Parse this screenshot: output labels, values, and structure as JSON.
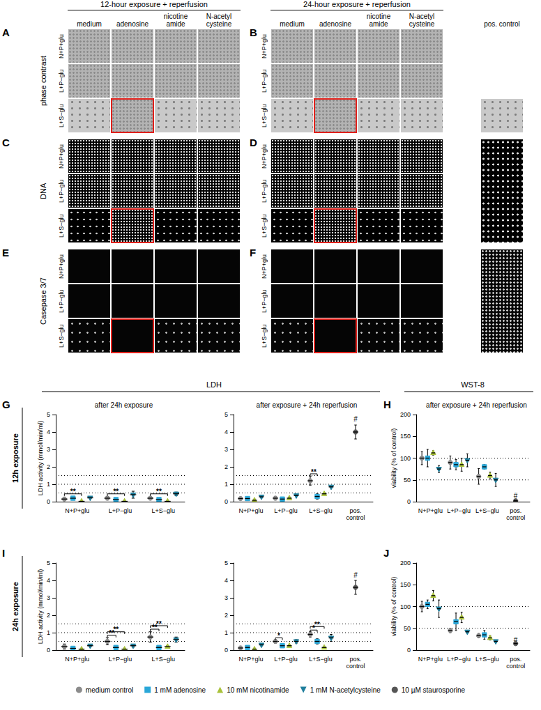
{
  "figure": {
    "panels": {
      "headers": [
        "12-hour exposure + reperfusion",
        "24-hour exposure + reperfusion"
      ],
      "columns": [
        "medium",
        "adenosine",
        "nicotine amide",
        "N-acetyl cysteine"
      ],
      "pos_control": "pos. control",
      "rows": [
        "N+P+glu",
        "L+P−glu",
        "L+S−glu"
      ],
      "stains": [
        "phase contrast",
        "DNA",
        "Casepase 3/7"
      ],
      "letters": [
        [
          "A",
          "B"
        ],
        [
          "C",
          "D"
        ],
        [
          "E",
          "F"
        ]
      ]
    },
    "sections": {
      "headers": [
        "LDH",
        "WST-8"
      ],
      "rows": [
        {
          "letter": "G",
          "label": "12h exposure",
          "side_letter": "H"
        },
        {
          "letter": "I",
          "label": "24h exposure",
          "side_letter": "J"
        }
      ]
    }
  },
  "chart_data": [
    {
      "type": "scatter",
      "title": "after 24h exposure",
      "y_label": "LDH activity (mmol/min/ml)",
      "categories": [
        "N+P+glu",
        "L+P−glu",
        "L+S−glu"
      ],
      "ylim": [
        0,
        5
      ],
      "yticks": [
        0,
        1,
        2,
        3,
        4,
        5
      ],
      "grid": false,
      "reference_lines": [
        0.5,
        1,
        1.5
      ],
      "series": [
        {
          "name": "medium control",
          "color": "#8c8c8c",
          "marker": "circle",
          "values": [
            0.15,
            0.2,
            0.2
          ],
          "errors": [
            0.05,
            0.1,
            0.07
          ]
        },
        {
          "name": "1 mM adenosine",
          "color": "#2aa7d8",
          "marker": "square",
          "values": [
            0.2,
            0.12,
            0.12
          ],
          "errors": [
            0.03,
            0.03,
            0.03
          ]
        },
        {
          "name": "10 mM nicotinamide",
          "color": "#a9c23a",
          "marker": "triangle",
          "values": [
            0.02,
            0.02,
            0.02
          ],
          "errors": [
            0.01,
            0.01,
            0.01
          ]
        },
        {
          "name": "1 mM N-acetylcysteine",
          "color": "#1f7e9c",
          "marker": "triangle-down",
          "values": [
            0.22,
            0.4,
            0.45
          ],
          "errors": [
            0.03,
            0.2,
            0.1
          ]
        }
      ],
      "annotations": [
        {
          "text": "**",
          "category": "N+P+glu",
          "from": "medium control",
          "to": "10 mM nicotinamide",
          "y": 0.45
        },
        {
          "text": "**",
          "category": "L+P−glu",
          "from": "medium control",
          "to": "10 mM nicotinamide",
          "y": 0.45
        },
        {
          "text": "**",
          "category": "L+S−glu",
          "from": "medium control",
          "to": "10 mM nicotinamide",
          "y": 0.45
        }
      ]
    },
    {
      "type": "scatter",
      "title": "after exposure + 24h reperfusion",
      "categories": [
        "N+P+glu",
        "L+P−glu",
        "L+S−glu",
        "pos. control"
      ],
      "ylim": [
        0,
        5
      ],
      "yticks": [
        0,
        1,
        2,
        3,
        4,
        5
      ],
      "grid": false,
      "reference_lines": [
        0.5,
        1,
        1.5
      ],
      "series": [
        {
          "name": "medium control",
          "color": "#8c8c8c",
          "marker": "circle",
          "values": [
            0.18,
            0.2,
            1.2,
            null
          ],
          "errors": [
            0.05,
            0.1,
            0.25,
            null
          ]
        },
        {
          "name": "1 mM adenosine",
          "color": "#2aa7d8",
          "marker": "square",
          "values": [
            0.18,
            0.15,
            0.3,
            null
          ],
          "errors": [
            0.03,
            0.05,
            0.15,
            null
          ]
        },
        {
          "name": "10 mM nicotinamide",
          "color": "#a9c23a",
          "marker": "triangle",
          "values": [
            0.08,
            0.2,
            0.45,
            null
          ],
          "errors": [
            0.03,
            0.05,
            0.05,
            null
          ]
        },
        {
          "name": "1 mM N-acetylcysteine",
          "color": "#1f7e9c",
          "marker": "triangle-down",
          "values": [
            0.28,
            0.35,
            0.85,
            null
          ],
          "errors": [
            0.03,
            0.05,
            0.05,
            null
          ]
        },
        {
          "name": "10 µM staurosporine",
          "color": "#555555",
          "marker": "circle",
          "values": [
            null,
            null,
            null,
            4.0
          ],
          "errors": [
            null,
            null,
            null,
            0.4
          ]
        }
      ],
      "annotations": [
        {
          "text": "**",
          "category": "L+S−glu",
          "from": "medium control",
          "to": "1 mM adenosine",
          "y": 1.6
        },
        {
          "text": "#",
          "category": "pos. control",
          "y": 4.75
        }
      ]
    },
    {
      "type": "scatter",
      "title": "after exposure + 24h reperfusion",
      "y_label": "viability (% of control)",
      "categories": [
        "N+P+glu",
        "L+P−glu",
        "L+S−glu",
        "pos. control"
      ],
      "ylim": [
        0,
        200
      ],
      "yticks": [
        0,
        50,
        100,
        150,
        200
      ],
      "grid": false,
      "reference_lines": [
        50,
        100
      ],
      "series": [
        {
          "name": "medium control",
          "color": "#8c8c8c",
          "marker": "circle",
          "values": [
            100,
            90,
            58,
            null
          ],
          "errors": [
            15,
            15,
            18,
            null
          ]
        },
        {
          "name": "1 mM adenosine",
          "color": "#2aa7d8",
          "marker": "square",
          "values": [
            100,
            85,
            80,
            null
          ],
          "errors": [
            20,
            12,
            5,
            null
          ]
        },
        {
          "name": "10 mM nicotinamide",
          "color": "#a9c23a",
          "marker": "triangle",
          "values": [
            112,
            85,
            60,
            null
          ],
          "errors": [
            5,
            15,
            8,
            null
          ]
        },
        {
          "name": "1 mM N-acetylcysteine",
          "color": "#1f7e9c",
          "marker": "triangle-down",
          "values": [
            75,
            95,
            50,
            null
          ],
          "errors": [
            8,
            15,
            15,
            null
          ]
        },
        {
          "name": "10 µM staurosporine",
          "color": "#555555",
          "marker": "circle",
          "values": [
            null,
            null,
            null,
            2
          ],
          "errors": [
            null,
            null,
            null,
            1
          ]
        }
      ],
      "annotations": [
        {
          "text": "#",
          "category": "pos. control",
          "y": 14
        }
      ]
    },
    {
      "type": "scatter",
      "y_label": "LDH activity (mmol/min/ml)",
      "categories": [
        "N+P+glu",
        "L+P−glu",
        "L+S−glu"
      ],
      "ylim": [
        0,
        5
      ],
      "yticks": [
        0,
        1,
        2,
        3,
        4,
        5
      ],
      "grid": false,
      "reference_lines": [
        0.5,
        1,
        1.5
      ],
      "series": [
        {
          "name": "medium control",
          "color": "#8c8c8c",
          "marker": "circle",
          "values": [
            0.2,
            0.5,
            0.75
          ],
          "errors": [
            0.15,
            0.2,
            0.3
          ]
        },
        {
          "name": "1 mM adenosine",
          "color": "#2aa7d8",
          "marker": "square",
          "values": [
            0.1,
            0.15,
            0.15
          ],
          "errors": [
            0.05,
            0.05,
            0.05
          ]
        },
        {
          "name": "10 mM nicotinamide",
          "color": "#a9c23a",
          "marker": "triangle",
          "values": [
            0.05,
            0.05,
            0.2
          ],
          "errors": [
            0.02,
            0.02,
            0.05
          ]
        },
        {
          "name": "1 mM N-acetylcysteine",
          "color": "#1f7e9c",
          "marker": "triangle-down",
          "values": [
            0.25,
            0.25,
            0.6
          ],
          "errors": [
            0.05,
            0.08,
            0.15
          ]
        }
      ],
      "annotations": [
        {
          "text": "**",
          "category": "L+P−glu",
          "from": "medium control",
          "to": "1 mM adenosine",
          "y": 0.85
        },
        {
          "text": "**",
          "category": "L+P−glu",
          "from": "medium control",
          "to": "10 mM nicotinamide",
          "y": 1.05
        },
        {
          "text": "**",
          "category": "L+S−glu",
          "from": "medium control",
          "to": "1 mM adenosine",
          "y": 1.2
        },
        {
          "text": "**",
          "category": "L+S−glu",
          "from": "medium control",
          "to": "10 mM nicotinamide",
          "y": 1.4
        }
      ]
    },
    {
      "type": "scatter",
      "categories": [
        "N+P+glu",
        "L+P−glu",
        "L+S−glu",
        "pos. control"
      ],
      "ylim": [
        0,
        5
      ],
      "yticks": [
        0,
        1,
        2,
        3,
        4,
        5
      ],
      "grid": false,
      "reference_lines": [
        0.5,
        1,
        1.5
      ],
      "series": [
        {
          "name": "medium control",
          "color": "#8c8c8c",
          "marker": "circle",
          "values": [
            0.12,
            0.5,
            0.9,
            null
          ],
          "errors": [
            0.03,
            0.1,
            0.15,
            null
          ]
        },
        {
          "name": "1 mM adenosine",
          "color": "#2aa7d8",
          "marker": "square",
          "values": [
            0.15,
            0.25,
            0.5,
            null
          ],
          "errors": [
            0.05,
            0.05,
            0.15,
            null
          ]
        },
        {
          "name": "10 mM nicotinamide",
          "color": "#a9c23a",
          "marker": "triangle",
          "values": [
            0.05,
            0.25,
            0.15,
            null
          ],
          "errors": [
            0.03,
            0.05,
            0.03,
            null
          ]
        },
        {
          "name": "1 mM N-acetylcysteine",
          "color": "#1f7e9c",
          "marker": "triangle-down",
          "values": [
            0.3,
            0.5,
            0.7,
            null
          ],
          "errors": [
            0.05,
            0.1,
            0.2,
            null
          ]
        },
        {
          "name": "10 µM staurosporine",
          "color": "#555555",
          "marker": "circle",
          "values": [
            null,
            null,
            null,
            3.6
          ],
          "errors": [
            null,
            null,
            null,
            0.4
          ]
        }
      ],
      "annotations": [
        {
          "text": "*",
          "category": "L+P−glu",
          "from": "medium control",
          "to": "1 mM adenosine",
          "y": 0.7
        },
        {
          "text": "*",
          "category": "L+S−glu",
          "from": "medium control",
          "to": "1 mM adenosine",
          "y": 1.15
        },
        {
          "text": "**",
          "category": "L+S−glu",
          "from": "medium control",
          "to": "10 mM nicotinamide",
          "y": 1.35
        },
        {
          "text": "#",
          "category": "pos. control",
          "y": 4.3
        }
      ]
    },
    {
      "type": "scatter",
      "y_label": "viability (% of control)",
      "categories": [
        "N+P+glu",
        "L+P−glu",
        "L+S−glu",
        "pos. control"
      ],
      "ylim": [
        0,
        200
      ],
      "yticks": [
        0,
        50,
        100,
        150,
        200
      ],
      "grid": false,
      "reference_lines": [
        50,
        100
      ],
      "series": [
        {
          "name": "medium control",
          "color": "#8c8c8c",
          "marker": "circle",
          "values": [
            100,
            45,
            33,
            null
          ],
          "errors": [
            12,
            5,
            5,
            null
          ]
        },
        {
          "name": "1 mM adenosine",
          "color": "#2aa7d8",
          "marker": "square",
          "values": [
            105,
            65,
            35,
            null
          ],
          "errors": [
            10,
            20,
            10,
            null
          ]
        },
        {
          "name": "10 mM nicotinamide",
          "color": "#a9c23a",
          "marker": "triangle",
          "values": [
            125,
            75,
            28,
            null
          ],
          "errors": [
            12,
            12,
            5,
            null
          ]
        },
        {
          "name": "1 mM N-acetylcysteine",
          "color": "#1f7e9c",
          "marker": "triangle-down",
          "values": [
            95,
            42,
            20,
            null
          ],
          "errors": [
            20,
            3,
            3,
            null
          ]
        },
        {
          "name": "10 µM staurosporine",
          "color": "#555555",
          "marker": "circle",
          "values": [
            null,
            null,
            null,
            15
          ],
          "errors": [
            null,
            null,
            null,
            2
          ]
        }
      ],
      "annotations": [
        {
          "text": "#",
          "category": "pos. control",
          "y": 24
        }
      ]
    }
  ]
}
